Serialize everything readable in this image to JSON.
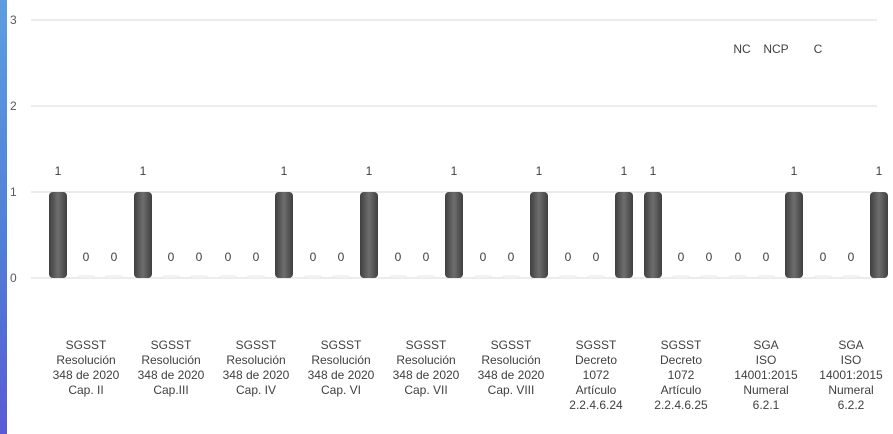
{
  "chart_data": {
    "type": "bar",
    "title": "",
    "xlabel": "",
    "ylabel": "",
    "ylim": [
      0,
      3
    ],
    "yticks": [
      0,
      1,
      2,
      3
    ],
    "grid": true,
    "legend_position": "top-right",
    "categories": [
      [
        "SGSST",
        "Resolución",
        "348 de 2020",
        "Cap. II"
      ],
      [
        "SGSST",
        "Resolución",
        "348 de 2020",
        "Cap.III"
      ],
      [
        "SGSST",
        "Resolución",
        "348 de 2020",
        "Cap. IV"
      ],
      [
        "SGSST",
        "Resolución",
        "348 de 2020",
        "Cap. VI"
      ],
      [
        "SGSST",
        "Resolución",
        "348 de 2020",
        "Cap. VII"
      ],
      [
        "SGSST",
        "Resolución",
        "348 de 2020",
        "Cap. VIII"
      ],
      [
        "SGSST",
        "Decreto",
        "1072",
        "Artículo",
        "2.2.4.6.24"
      ],
      [
        "SGSST",
        "Decreto",
        "1072",
        "Artículo",
        "2.2.4.6.25"
      ],
      [
        "SGA",
        "ISO",
        "14001:2015",
        "Numeral",
        "6.2.1"
      ],
      [
        "SGA",
        "ISO",
        "14001:2015",
        "Numeral",
        "6.2.2"
      ]
    ],
    "series": [
      {
        "name": "NC",
        "color": "#595959",
        "values": [
          1,
          1,
          0,
          0,
          0,
          0,
          0,
          1,
          0,
          0
        ]
      },
      {
        "name": "NCP",
        "color": "#f2f2f2",
        "values": [
          0,
          0,
          0,
          0,
          0,
          0,
          0,
          0,
          0,
          0
        ]
      },
      {
        "name": "C",
        "color": "#595959",
        "values": [
          0,
          0,
          1,
          1,
          1,
          1,
          1,
          0,
          1,
          1
        ]
      }
    ]
  }
}
